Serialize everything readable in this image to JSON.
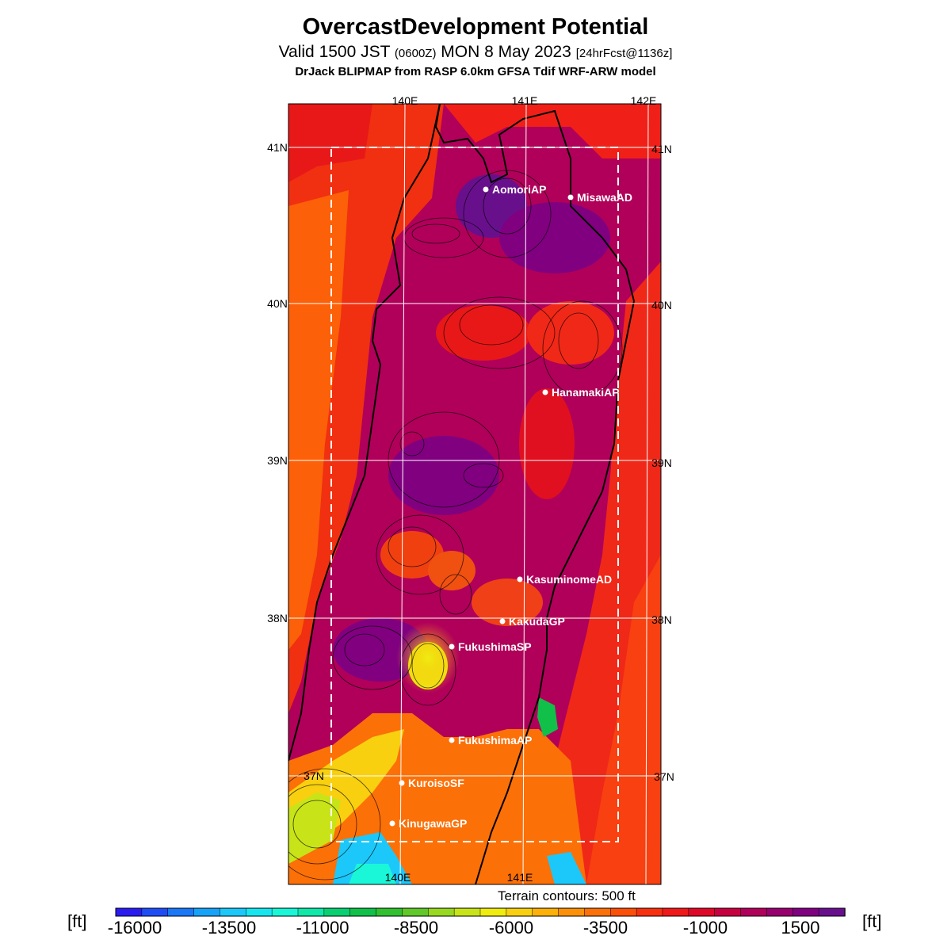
{
  "header": {
    "title": "OvercastDevelopment Potential",
    "valid_main": "Valid 1500 JST",
    "valid_zulu": "(0600Z)",
    "valid_date": "MON 8 May 2023",
    "forecast": "[24hrFcst@1136z]",
    "model": "DrJack BLIPMAP from RASP 6.0km GFSA Tdif WRF-ARW model"
  },
  "map": {
    "lon_labels": [
      "140E",
      "141E",
      "142E"
    ],
    "lat_labels": [
      "41N",
      "40N",
      "39N",
      "38N",
      "37N"
    ],
    "stations": [
      "AomoriAP",
      "MisawaAD",
      "HanamakiAP",
      "KasuminomeAD",
      "KakudaGP",
      "FukushimaSP",
      "FukushimaAP",
      "KuroisoSF",
      "KinugawaGP"
    ],
    "colors": {
      "background_field": "#b0005a",
      "grid": "#ffffff",
      "coast": "#000000"
    }
  },
  "legend": {
    "note": "Terrain contours: 500 ft",
    "unit_left": "[ft]",
    "unit_right": "[ft]",
    "tick_labels": [
      "-16000",
      "-13500",
      "-11000",
      "-8500",
      "-6000",
      "-3500",
      "-1000",
      "1500"
    ],
    "colors": [
      "#2a1cf0",
      "#1f4df5",
      "#1a78f8",
      "#17a2fa",
      "#1cc8fa",
      "#17e6f0",
      "#19f7d8",
      "#10e8a8",
      "#08d070",
      "#10c048",
      "#30c030",
      "#60c828",
      "#98d820",
      "#c8e418",
      "#f0ec10",
      "#f8d010",
      "#fcb008",
      "#fc9008",
      "#fc7008",
      "#fc5008",
      "#f83010",
      "#f01818",
      "#e00828",
      "#c80040",
      "#b0005a",
      "#980070",
      "#800080",
      "#68108c"
    ]
  }
}
